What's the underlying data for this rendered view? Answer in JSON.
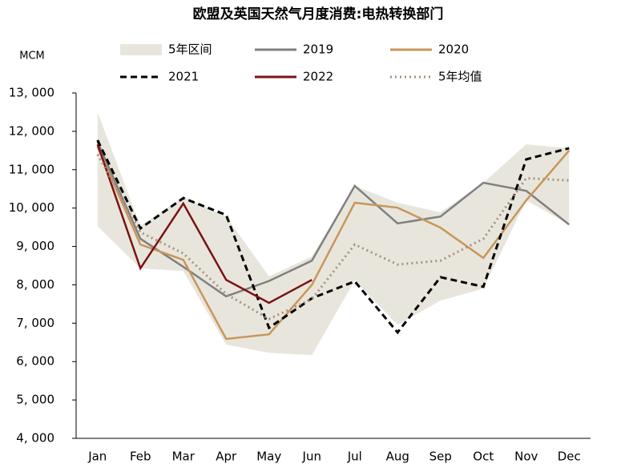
{
  "chart_data": {
    "type": "line",
    "title": "欧盟及英国天然气月度消费:电热转换部门",
    "y_label": "MCM",
    "categories": [
      "Jan",
      "Feb",
      "Mar",
      "Apr",
      "May",
      "Jun",
      "Jul",
      "Aug",
      "Sep",
      "Oct",
      "Nov",
      "Dec"
    ],
    "band": {
      "name": "5年区间",
      "color": "#e8e6dc",
      "upper": [
        12500,
        9530,
        10300,
        9780,
        8220,
        8740,
        10580,
        10140,
        9890,
        10660,
        11660,
        11560
      ],
      "lower": [
        9530,
        8430,
        8360,
        6440,
        6230,
        6170,
        8110,
        6960,
        7590,
        7900,
        10200,
        9570
      ]
    },
    "series": [
      {
        "name": "2019",
        "color": "#808080",
        "style": "solid",
        "values": [
          11720,
          9200,
          8470,
          7700,
          8100,
          8630,
          10580,
          9600,
          9780,
          10660,
          10450,
          9570
        ]
      },
      {
        "name": "2020",
        "color": "#c8965a",
        "style": "solid",
        "values": [
          11600,
          9050,
          8650,
          6590,
          6710,
          8000,
          10140,
          10010,
          9490,
          8700,
          10200,
          11500
        ]
      },
      {
        "name": "2021",
        "color": "#000000",
        "style": "dashed",
        "values": [
          11770,
          9470,
          10260,
          9820,
          6880,
          7650,
          8090,
          6760,
          8200,
          7950,
          11270,
          11560
        ]
      },
      {
        "name": "2022",
        "color": "#7b1214",
        "style": "solid",
        "values": [
          11660,
          8430,
          10120,
          8130,
          7530,
          8130,
          null,
          null,
          null,
          null,
          null,
          null
        ]
      },
      {
        "name": "5年均值",
        "color": "#a89080",
        "style": "dotted",
        "values": [
          11400,
          9370,
          8820,
          7760,
          7110,
          7630,
          9050,
          8530,
          8630,
          9200,
          10780,
          10720
        ]
      }
    ],
    "ylim": [
      4000,
      13000
    ],
    "yticks": [
      {
        "value": 4000,
        "label": "4, 000"
      },
      {
        "value": 5000,
        "label": "5, 000"
      },
      {
        "value": 6000,
        "label": "6, 000"
      },
      {
        "value": 7000,
        "label": "7, 000"
      },
      {
        "value": 8000,
        "label": "8, 000"
      },
      {
        "value": 9000,
        "label": "9, 000"
      },
      {
        "value": 10000,
        "label": "10, 000"
      },
      {
        "value": 11000,
        "label": "11, 000"
      },
      {
        "value": 12000,
        "label": "12, 000"
      },
      {
        "value": 13000,
        "label": "13, 000"
      }
    ]
  }
}
